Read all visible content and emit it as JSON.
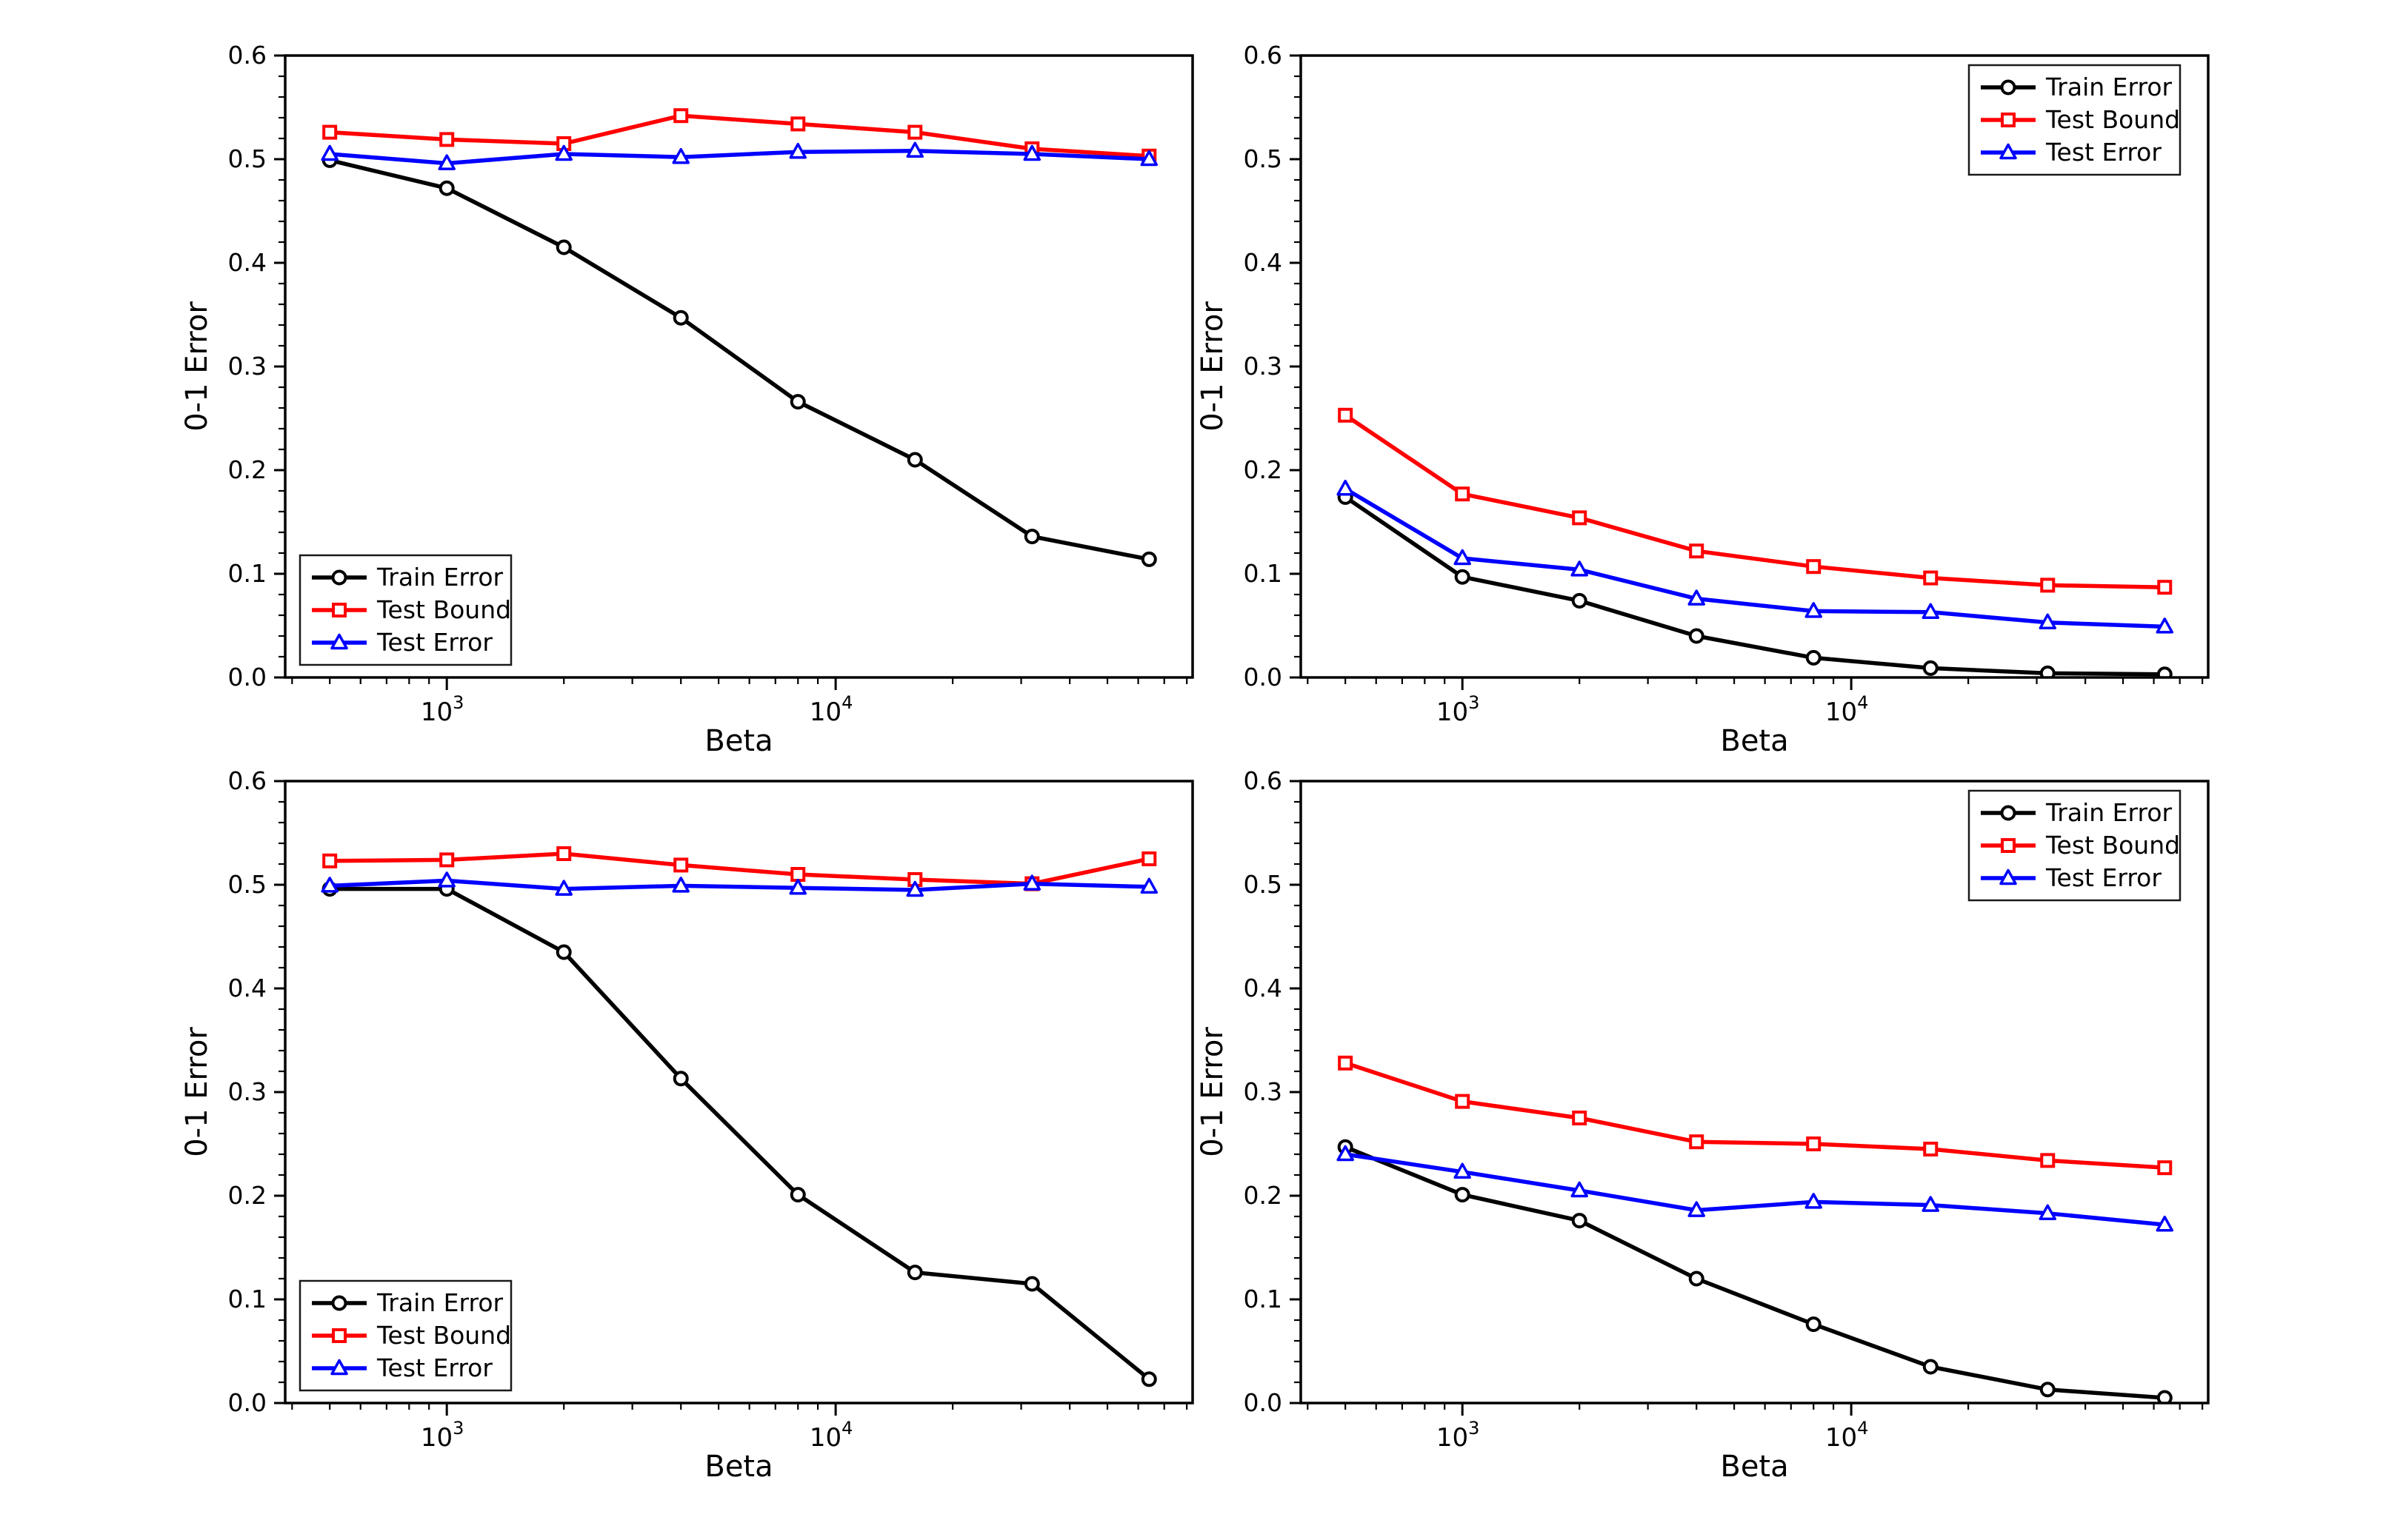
{
  "figure": {
    "background": "#ffffff",
    "description": "2x2 grid of log-x line charts of 0-1 Error versus Beta"
  },
  "colors": {
    "train": "#000000",
    "bound": "#ff0000",
    "test": "#0000ff",
    "spine": "#000000",
    "legend_edge": "#1a1a1a",
    "marker_face": "#ffffff"
  },
  "chart_data": [
    {
      "position": "top-left",
      "type": "line",
      "xscale": "log",
      "xlabel": "Beta",
      "ylabel": "0-1 Error",
      "ylim": [
        0.0,
        0.6
      ],
      "xlim": [
        384,
        82800
      ],
      "yticks": [
        0.0,
        0.1,
        0.2,
        0.3,
        0.4,
        0.5,
        0.6
      ],
      "xticks": [
        1000,
        10000
      ],
      "xtick_labels": [
        {
          "base": "10",
          "exp": "3"
        },
        {
          "base": "10",
          "exp": "4"
        }
      ],
      "grid": false,
      "legend_position": "lower-left",
      "x": [
        500,
        1000,
        2000,
        4000,
        8000,
        16000,
        32000,
        64000
      ],
      "series": [
        {
          "name": "Train Error",
          "color": "#000000",
          "marker": "circle",
          "values": [
            0.499,
            0.472,
            0.415,
            0.347,
            0.266,
            0.21,
            0.136,
            0.114
          ]
        },
        {
          "name": "Test Bound",
          "color": "#ff0000",
          "marker": "square",
          "values": [
            0.526,
            0.519,
            0.515,
            0.542,
            0.534,
            0.526,
            0.51,
            0.503
          ]
        },
        {
          "name": "Test Error",
          "color": "#0000ff",
          "marker": "triangle",
          "values": [
            0.505,
            0.496,
            0.505,
            0.502,
            0.507,
            0.508,
            0.505,
            0.5
          ]
        }
      ]
    },
    {
      "position": "top-right",
      "type": "line",
      "xscale": "log",
      "xlabel": "Beta",
      "ylabel": "0-1 Error",
      "ylim": [
        0.0,
        0.6
      ],
      "xlim": [
        384,
        82800
      ],
      "yticks": [
        0.0,
        0.1,
        0.2,
        0.3,
        0.4,
        0.5,
        0.6
      ],
      "xticks": [
        1000,
        10000
      ],
      "xtick_labels": [
        {
          "base": "10",
          "exp": "3"
        },
        {
          "base": "10",
          "exp": "4"
        }
      ],
      "grid": false,
      "legend_position": "upper-right",
      "x": [
        500,
        1000,
        2000,
        4000,
        8000,
        16000,
        32000,
        64000
      ],
      "series": [
        {
          "name": "Train Error",
          "color": "#000000",
          "marker": "circle",
          "values": [
            0.174,
            0.097,
            0.074,
            0.04,
            0.019,
            0.009,
            0.004,
            0.003
          ]
        },
        {
          "name": "Test Bound",
          "color": "#ff0000",
          "marker": "square",
          "values": [
            0.253,
            0.177,
            0.154,
            0.122,
            0.107,
            0.096,
            0.089,
            0.087
          ]
        },
        {
          "name": "Test Error",
          "color": "#0000ff",
          "marker": "triangle",
          "values": [
            0.182,
            0.115,
            0.104,
            0.076,
            0.064,
            0.063,
            0.053,
            0.049
          ]
        }
      ]
    },
    {
      "position": "bottom-left",
      "type": "line",
      "xscale": "log",
      "xlabel": "Beta",
      "ylabel": "0-1 Error",
      "ylim": [
        0.0,
        0.6
      ],
      "xlim": [
        384,
        82800
      ],
      "yticks": [
        0.0,
        0.1,
        0.2,
        0.3,
        0.4,
        0.5,
        0.6
      ],
      "xticks": [
        1000,
        10000
      ],
      "xtick_labels": [
        {
          "base": "10",
          "exp": "3"
        },
        {
          "base": "10",
          "exp": "4"
        }
      ],
      "grid": false,
      "legend_position": "lower-left",
      "x": [
        500,
        1000,
        2000,
        4000,
        8000,
        16000,
        32000,
        64000
      ],
      "series": [
        {
          "name": "Train Error",
          "color": "#000000",
          "marker": "circle",
          "values": [
            0.496,
            0.496,
            0.435,
            0.313,
            0.201,
            0.126,
            0.115,
            0.023
          ]
        },
        {
          "name": "Test Bound",
          "color": "#ff0000",
          "marker": "square",
          "values": [
            0.523,
            0.524,
            0.53,
            0.519,
            0.51,
            0.505,
            0.501,
            0.525
          ]
        },
        {
          "name": "Test Error",
          "color": "#0000ff",
          "marker": "triangle",
          "values": [
            0.499,
            0.504,
            0.496,
            0.499,
            0.497,
            0.495,
            0.501,
            0.498
          ]
        }
      ]
    },
    {
      "position": "bottom-right",
      "type": "line",
      "xscale": "log",
      "xlabel": "Beta",
      "ylabel": "0-1 Error",
      "ylim": [
        0.0,
        0.6
      ],
      "xlim": [
        384,
        82800
      ],
      "yticks": [
        0.0,
        0.1,
        0.2,
        0.3,
        0.4,
        0.5,
        0.6
      ],
      "xticks": [
        1000,
        10000
      ],
      "xtick_labels": [
        {
          "base": "10",
          "exp": "3"
        },
        {
          "base": "10",
          "exp": "4"
        }
      ],
      "grid": false,
      "legend_position": "upper-right",
      "x": [
        500,
        1000,
        2000,
        4000,
        8000,
        16000,
        32000,
        64000
      ],
      "series": [
        {
          "name": "Train Error",
          "color": "#000000",
          "marker": "circle",
          "values": [
            0.247,
            0.201,
            0.176,
            0.12,
            0.076,
            0.035,
            0.013,
            0.005
          ]
        },
        {
          "name": "Test Bound",
          "color": "#ff0000",
          "marker": "square",
          "values": [
            0.328,
            0.291,
            0.275,
            0.252,
            0.25,
            0.245,
            0.234,
            0.227
          ]
        },
        {
          "name": "Test Error",
          "color": "#0000ff",
          "marker": "triangle",
          "values": [
            0.24,
            0.223,
            0.205,
            0.186,
            0.194,
            0.191,
            0.183,
            0.172
          ]
        }
      ]
    }
  ]
}
